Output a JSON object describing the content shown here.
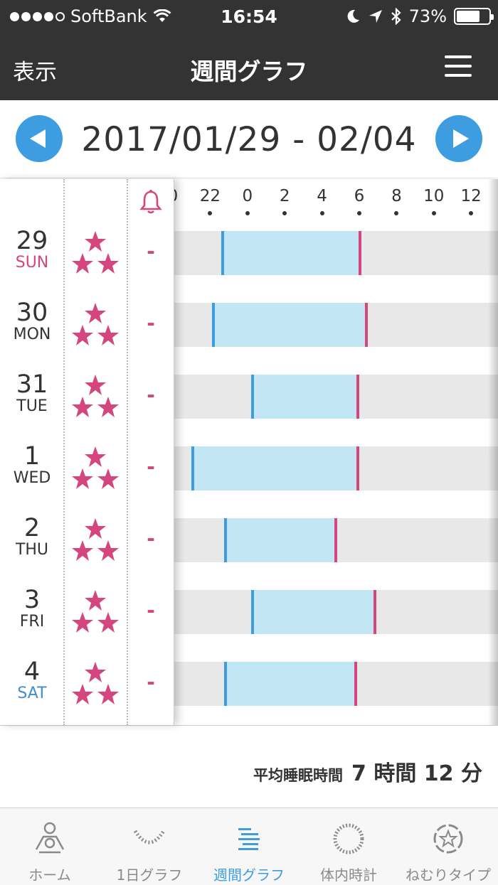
{
  "status_bar": {
    "carrier": "SoftBank",
    "time": "16:54",
    "battery_percent": "73%",
    "battery_level": 0.73,
    "signal_bars": 4
  },
  "nav": {
    "left_label": "表示",
    "title": "週間グラフ"
  },
  "date_range": "2017/01/29 - 02/04",
  "axis_ticks": [
    "0",
    "22",
    "0",
    "2",
    "4",
    "6",
    "8",
    "10",
    "12"
  ],
  "days": [
    {
      "num": "29",
      "dow": "SUN",
      "alarm": "-",
      "bed": 22.6,
      "wake": 6.1
    },
    {
      "num": "30",
      "dow": "MON",
      "alarm": "-",
      "bed": 22.1,
      "wake": 6.45
    },
    {
      "num": "31",
      "dow": "TUE",
      "alarm": "-",
      "bed": 0.2,
      "wake": 6.0
    },
    {
      "num": "1",
      "dow": "WED",
      "alarm": "-",
      "bed": 21.0,
      "wake": 6.0
    },
    {
      "num": "2",
      "dow": "THU",
      "alarm": "-",
      "bed": 22.75,
      "wake": 4.8
    },
    {
      "num": "3",
      "dow": "FRI",
      "alarm": "-",
      "bed": 0.2,
      "wake": 6.9
    },
    {
      "num": "4",
      "dow": "SAT",
      "alarm": "-",
      "bed": 22.75,
      "wake": 5.9
    }
  ],
  "average": {
    "label": "平均睡眠時間",
    "value": "7 時間 12 分"
  },
  "tabs": [
    {
      "label": "ホーム",
      "icon": "home-person-icon",
      "active": false
    },
    {
      "label": "1日グラフ",
      "icon": "daily-graph-icon",
      "active": false
    },
    {
      "label": "週間グラフ",
      "icon": "weekly-graph-icon",
      "active": true
    },
    {
      "label": "体内時計",
      "icon": "body-clock-icon",
      "active": false
    },
    {
      "label": "ねむりタイプ",
      "icon": "sleep-type-icon",
      "active": false
    }
  ],
  "colors": {
    "accent_blue": "#3d9de0",
    "accent_pink": "#d6467e",
    "sleep_bar": "#c2e6f4",
    "row_bg": "#e8e8e8",
    "header_bg": "#333333"
  }
}
